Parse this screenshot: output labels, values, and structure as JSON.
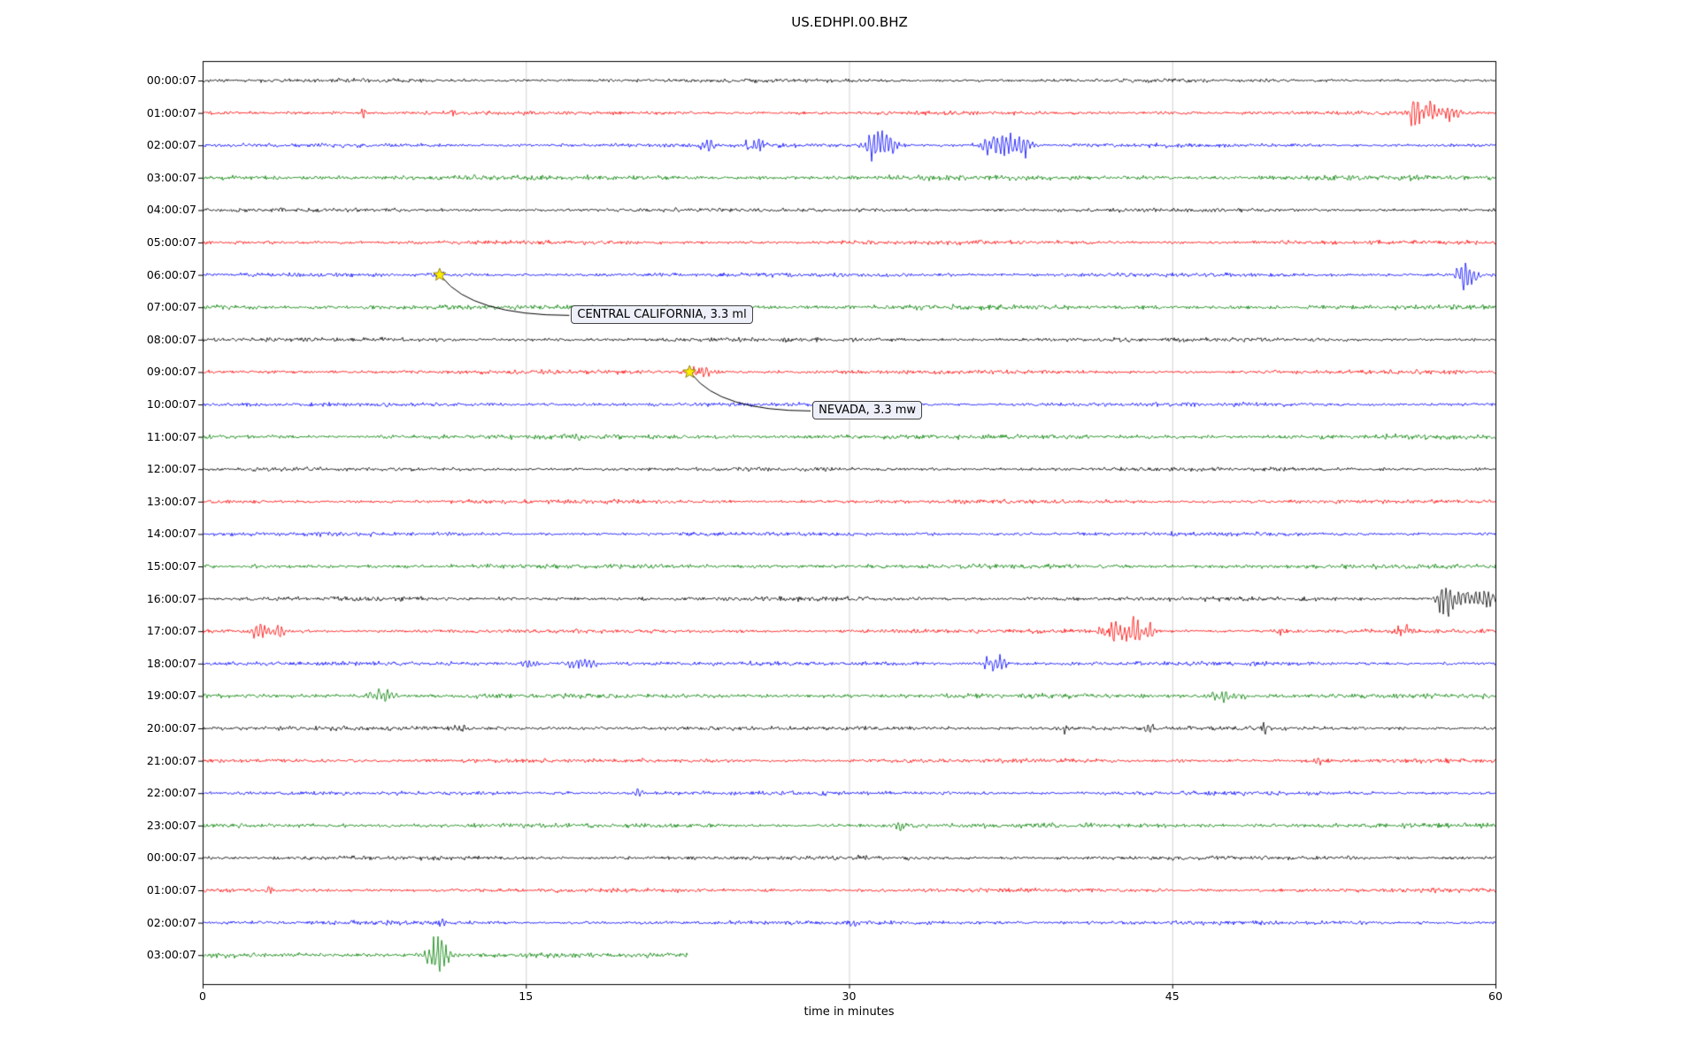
{
  "page": {
    "title": "US.EDHPI.00.BHZ"
  },
  "chart_data": {
    "type": "line",
    "subtype": "seismogram-helicorder-dayplot",
    "title": "US.EDHPI.00.BHZ",
    "xlabel": "time in minutes",
    "xlim": [
      0,
      60
    ],
    "x_ticks": [
      0,
      15,
      30,
      45,
      60
    ],
    "x_tick_labels": [
      "0",
      "15",
      "30",
      "45",
      "60"
    ],
    "grid": {
      "vertical_minutes": [
        15,
        30,
        45
      ],
      "color": "#cccccc"
    },
    "trace_color_cycle": [
      "#000000",
      "#ff0000",
      "#0000ff",
      "#008000"
    ],
    "events_format": "each event = [minute, burst_amplitude_px, sigma_minutes]",
    "rows": [
      {
        "label": "00:00:07",
        "color": "#000000",
        "base_amp": 2.2,
        "end_minute": 60,
        "events": []
      },
      {
        "label": "01:00:07",
        "color": "#ff0000",
        "base_amp": 2.2,
        "end_minute": 60,
        "events": [
          [
            7.5,
            5,
            0.12
          ],
          [
            11.6,
            6,
            0.1
          ],
          [
            56.4,
            20,
            0.25
          ],
          [
            57.0,
            12,
            0.15
          ],
          [
            57.9,
            8,
            0.3
          ]
        ]
      },
      {
        "label": "02:00:07",
        "color": "#0000ff",
        "base_amp": 2.3,
        "end_minute": 60,
        "events": [
          [
            23.4,
            9,
            0.18
          ],
          [
            25.6,
            7,
            0.35
          ],
          [
            31.2,
            22,
            0.3
          ],
          [
            31.8,
            10,
            0.4
          ],
          [
            36.9,
            13,
            0.5
          ],
          [
            37.9,
            14,
            0.35
          ]
        ]
      },
      {
        "label": "03:00:07",
        "color": "#008000",
        "base_amp": 3.0,
        "end_minute": 60,
        "events": []
      },
      {
        "label": "04:00:07",
        "color": "#000000",
        "base_amp": 2.2,
        "end_minute": 60,
        "events": []
      },
      {
        "label": "05:00:07",
        "color": "#ff0000",
        "base_amp": 2.4,
        "end_minute": 60,
        "events": []
      },
      {
        "label": "06:00:07",
        "color": "#0000ff",
        "base_amp": 2.3,
        "end_minute": 60,
        "events": [
          [
            11.0,
            3,
            0.2
          ],
          [
            58.5,
            12,
            0.25
          ],
          [
            59.0,
            8,
            0.2
          ]
        ]
      },
      {
        "label": "07:00:07",
        "color": "#008000",
        "base_amp": 2.8,
        "end_minute": 60,
        "events": []
      },
      {
        "label": "08:00:07",
        "color": "#000000",
        "base_amp": 2.3,
        "end_minute": 60,
        "events": []
      },
      {
        "label": "09:00:07",
        "color": "#ff0000",
        "base_amp": 2.3,
        "end_minute": 60,
        "events": [
          [
            23.0,
            7,
            0.3
          ],
          [
            23.5,
            4,
            0.2
          ]
        ]
      },
      {
        "label": "10:00:07",
        "color": "#0000ff",
        "base_amp": 2.3,
        "end_minute": 60,
        "events": []
      },
      {
        "label": "11:00:07",
        "color": "#008000",
        "base_amp": 2.7,
        "end_minute": 60,
        "events": [
          [
            17.0,
            2,
            0.5
          ]
        ]
      },
      {
        "label": "12:00:07",
        "color": "#000000",
        "base_amp": 2.2,
        "end_minute": 60,
        "events": []
      },
      {
        "label": "13:00:07",
        "color": "#ff0000",
        "base_amp": 2.3,
        "end_minute": 60,
        "events": []
      },
      {
        "label": "14:00:07",
        "color": "#0000ff",
        "base_amp": 2.3,
        "end_minute": 60,
        "events": []
      },
      {
        "label": "15:00:07",
        "color": "#008000",
        "base_amp": 2.7,
        "end_minute": 60,
        "events": []
      },
      {
        "label": "16:00:07",
        "color": "#000000",
        "base_amp": 2.4,
        "end_minute": 60,
        "events": [
          [
            57.6,
            26,
            0.2
          ],
          [
            58.3,
            10,
            0.35
          ],
          [
            59.2,
            9,
            0.25
          ],
          [
            59.7,
            7,
            0.2
          ]
        ]
      },
      {
        "label": "17:00:07",
        "color": "#ff0000",
        "base_amp": 2.3,
        "end_minute": 60,
        "events": [
          [
            2.7,
            8,
            0.3
          ],
          [
            3.6,
            7,
            0.18
          ],
          [
            42.2,
            14,
            0.4
          ],
          [
            43.2,
            16,
            0.25
          ],
          [
            44.0,
            9,
            0.2
          ],
          [
            50.0,
            3,
            0.2
          ],
          [
            55.7,
            7,
            0.25
          ]
        ]
      },
      {
        "label": "18:00:07",
        "color": "#0000ff",
        "base_amp": 2.3,
        "end_minute": 60,
        "events": [
          [
            15.1,
            5,
            0.25
          ],
          [
            17.5,
            6,
            0.4
          ],
          [
            18.1,
            5,
            0.2
          ],
          [
            36.6,
            7,
            0.35
          ],
          [
            37.1,
            5,
            0.2
          ]
        ]
      },
      {
        "label": "19:00:07",
        "color": "#008000",
        "base_amp": 2.7,
        "end_minute": 60,
        "events": [
          [
            8.1,
            7,
            0.35
          ],
          [
            8.7,
            4,
            0.2
          ],
          [
            47.3,
            8,
            0.35
          ],
          [
            48.2,
            4,
            0.25
          ]
        ]
      },
      {
        "label": "20:00:07",
        "color": "#000000",
        "base_amp": 2.4,
        "end_minute": 60,
        "events": [
          [
            12.0,
            3,
            0.4
          ],
          [
            40.0,
            4,
            0.3
          ],
          [
            44.0,
            3,
            0.2
          ],
          [
            49.3,
            14,
            0.08
          ]
        ]
      },
      {
        "label": "21:00:07",
        "color": "#ff0000",
        "base_amp": 2.3,
        "end_minute": 60,
        "events": [
          [
            45.0,
            2,
            0.3
          ],
          [
            51.7,
            7,
            0.12
          ]
        ]
      },
      {
        "label": "22:00:07",
        "color": "#0000ff",
        "base_amp": 2.3,
        "end_minute": 60,
        "events": [
          [
            20.2,
            5,
            0.12
          ]
        ]
      },
      {
        "label": "23:00:07",
        "color": "#008000",
        "base_amp": 2.7,
        "end_minute": 60,
        "events": [
          [
            32.4,
            4,
            0.25
          ],
          [
            41.3,
            3,
            0.2
          ],
          [
            55.7,
            5,
            0.12
          ]
        ]
      },
      {
        "label": "00:00:07",
        "color": "#000000",
        "base_amp": 2.3,
        "end_minute": 60,
        "events": [
          [
            30.5,
            2,
            0.4
          ]
        ]
      },
      {
        "label": "01:00:07",
        "color": "#ff0000",
        "base_amp": 2.3,
        "end_minute": 60,
        "events": [
          [
            3.1,
            6,
            0.1
          ]
        ]
      },
      {
        "label": "02:00:07",
        "color": "#0000ff",
        "base_amp": 2.3,
        "end_minute": 60,
        "events": [
          [
            11.1,
            4,
            0.12
          ],
          [
            30.2,
            4,
            0.15
          ]
        ]
      },
      {
        "label": "03:00:07",
        "color": "#008000",
        "base_amp": 2.8,
        "end_minute": 22.5,
        "events": [
          [
            10.7,
            18,
            0.3
          ],
          [
            11.2,
            10,
            0.2
          ]
        ]
      }
    ],
    "annotations": [
      {
        "text": "CENTRAL CALIFORNIA, 3.3 ml",
        "star": {
          "row": 6,
          "minute": 11.0
        },
        "label_pos": {
          "row": 7.25,
          "minute": 17.1
        },
        "star_color": "#ffee00"
      },
      {
        "text": "NEVADA, 3.3 mw",
        "star": {
          "row": 9,
          "minute": 22.6
        },
        "label_pos": {
          "row": 10.2,
          "minute": 28.3
        },
        "star_color": "#ffee00"
      }
    ]
  }
}
